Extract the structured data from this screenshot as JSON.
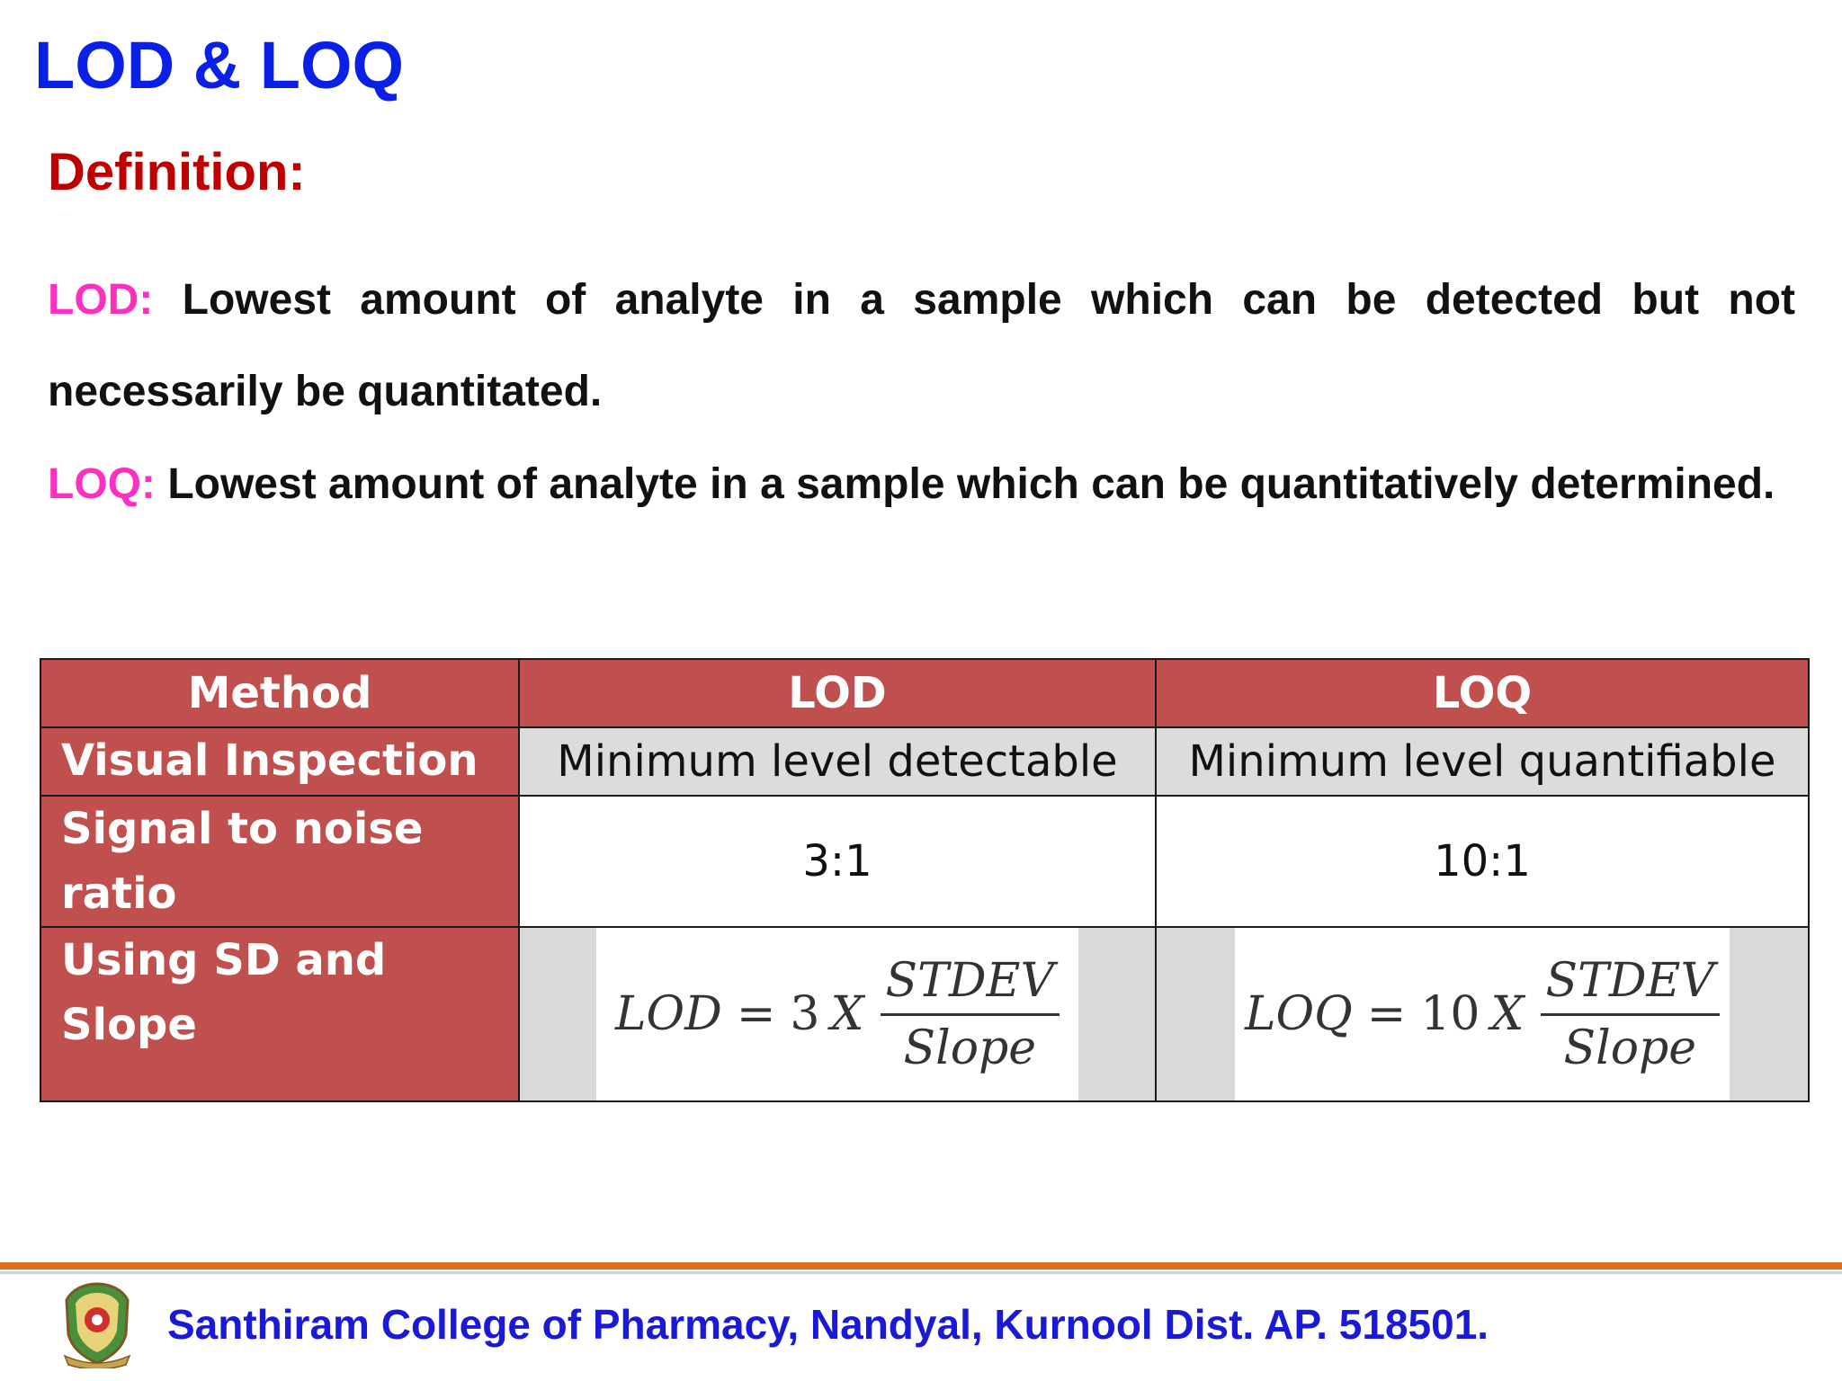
{
  "title": "LOD & LOQ",
  "subtitle": "Definition:",
  "definitions": [
    {
      "term": "LOD:",
      "text": "Lowest amount of analyte in a sample which can be detected but not necessarily be quantitated."
    },
    {
      "term": "LOQ:",
      "text": "Lowest amount of analyte in a sample which can be quantitatively determined."
    }
  ],
  "table": {
    "headers": [
      "Method",
      "LOD",
      "LOQ"
    ],
    "rows": [
      {
        "method": "Visual Inspection",
        "lod": "Minimum level detectable",
        "loq": "Minimum level quantifiable"
      },
      {
        "method": "Signal to noise ratio",
        "lod": "3:1",
        "loq": "10:1"
      },
      {
        "method": "Using SD and Slope"
      }
    ],
    "formulas": {
      "lod": {
        "lhs": "LOD",
        "eq": "=",
        "coef": "3",
        "x": "X",
        "numerator": "STDEV",
        "denominator": "Slope"
      },
      "loq": {
        "lhs": "LOQ",
        "eq": "=",
        "coef": "10",
        "x": "X",
        "numerator": "STDEV",
        "denominator": "Slope"
      }
    }
  },
  "footer": {
    "text": "Santhiram College of Pharmacy, Nandyal, Kurnool Dist. AP. 518501.",
    "logo_icon": "college-crest-icon",
    "accent": "#e36c1a"
  }
}
